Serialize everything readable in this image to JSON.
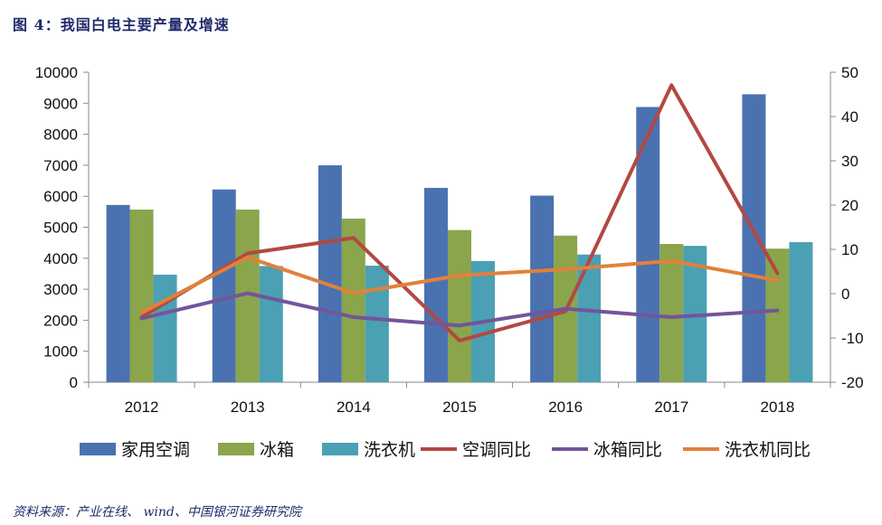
{
  "figure_title": "图 4：我国白电主要产量及增速",
  "source_note": "资料来源：产业在线、 wind、中国银河证券研究院",
  "colors": {
    "ac": "#4a72b0",
    "fridge": "#8aa54c",
    "washer": "#4ba0b4",
    "ac_yoy": "#b34842",
    "fridge_yoy": "#72559a",
    "washer_yoy": "#e2813a"
  },
  "chart_data": {
    "type": "bar",
    "categories": [
      "2012",
      "2013",
      "2014",
      "2015",
      "2016",
      "2017",
      "2018"
    ],
    "ylim": [
      0,
      10000
    ],
    "y_ticks": [
      "0",
      "1000",
      "2000",
      "3000",
      "4000",
      "5000",
      "6000",
      "7000",
      "8000",
      "9000",
      "10000"
    ],
    "y2lim": [
      -20,
      50
    ],
    "y2_ticks": [
      "-20",
      "-10",
      "0",
      "10",
      "20",
      "30",
      "40",
      "50"
    ],
    "grid": false,
    "legend_position": "bottom",
    "series": [
      {
        "name": "家用空调",
        "kind": "bar",
        "axis": "left",
        "color_key": "ac",
        "values": [
          5720,
          6220,
          7000,
          6270,
          6020,
          8880,
          9290
        ]
      },
      {
        "name": "冰箱",
        "kind": "bar",
        "axis": "left",
        "color_key": "fridge",
        "values": [
          5570,
          5570,
          5280,
          4910,
          4730,
          4460,
          4310
        ]
      },
      {
        "name": "洗衣机",
        "kind": "bar",
        "axis": "left",
        "color_key": "washer",
        "values": [
          3470,
          3750,
          3760,
          3910,
          4120,
          4400,
          4520
        ]
      },
      {
        "name": "空调同比",
        "kind": "line",
        "axis": "right",
        "color_key": "ac_yoy",
        "values": [
          -5.3,
          9.1,
          12.6,
          -10.6,
          -4.0,
          47.1,
          4.6
        ]
      },
      {
        "name": "冰箱同比",
        "kind": "line",
        "axis": "right",
        "color_key": "fridge_yoy",
        "values": [
          -5.6,
          0.1,
          -5.3,
          -7.2,
          -3.4,
          -5.3,
          -3.8
        ]
      },
      {
        "name": "洗衣机同比",
        "kind": "line",
        "axis": "right",
        "color_key": "washer_yoy",
        "values": [
          -4.3,
          8.2,
          0.1,
          4.1,
          5.5,
          7.4,
          3.0
        ]
      }
    ]
  }
}
